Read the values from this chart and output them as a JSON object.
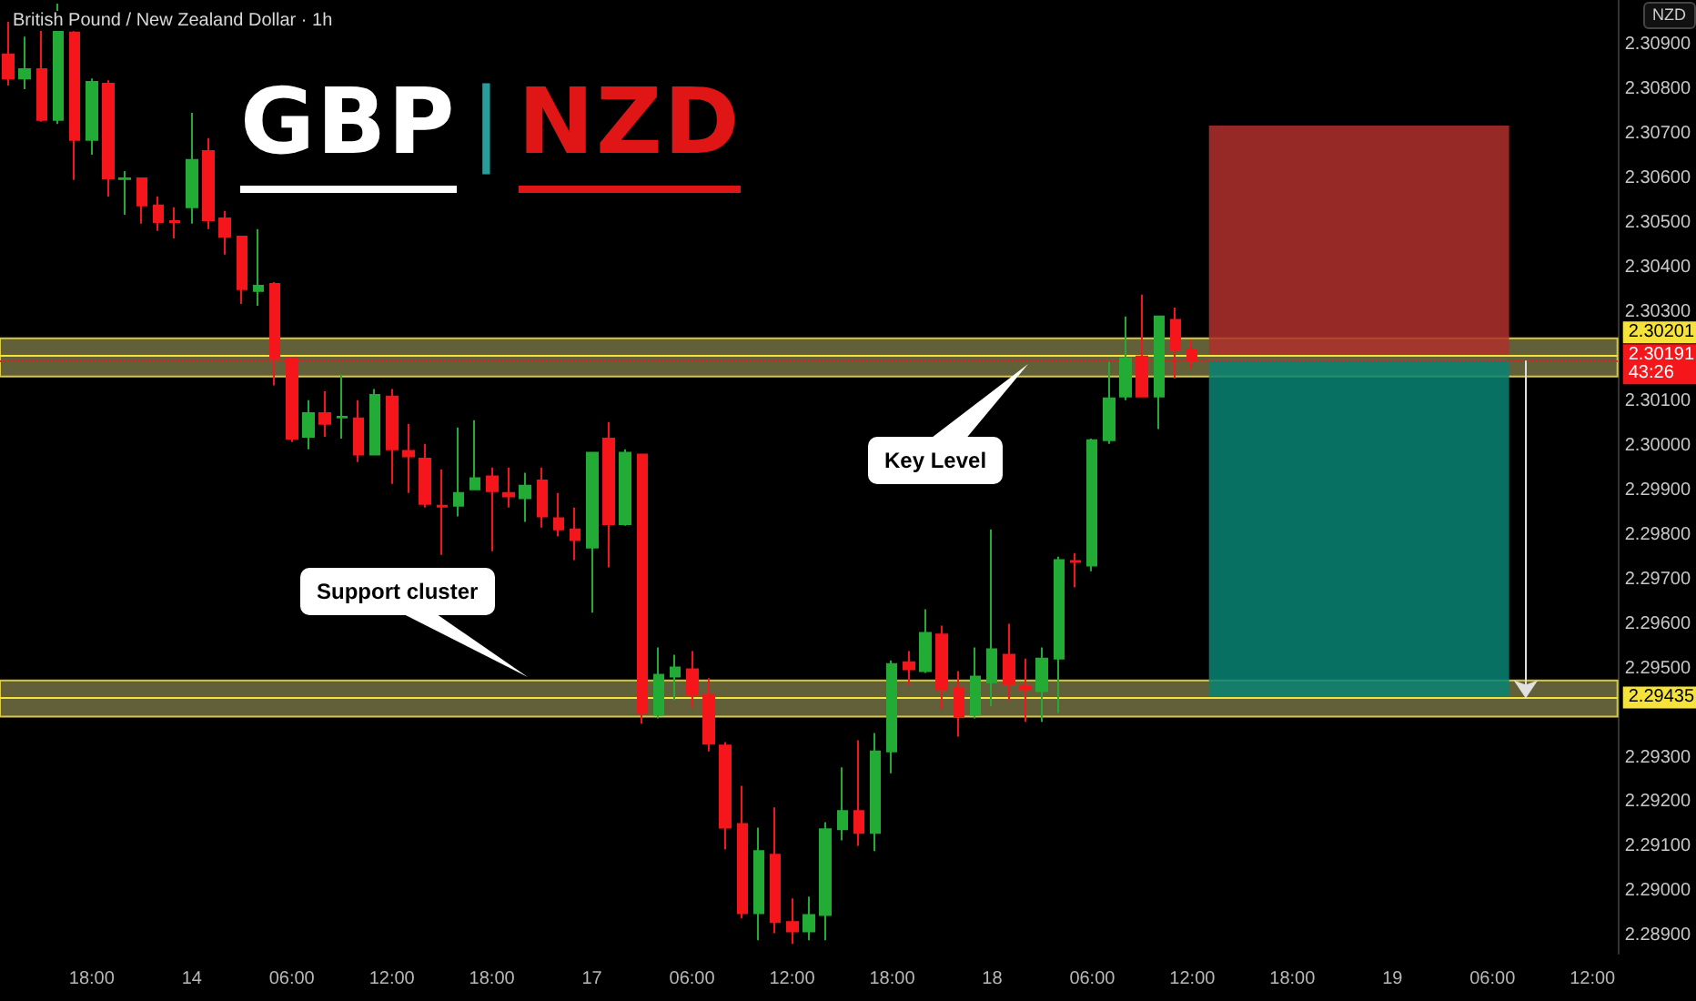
{
  "chart_data": {
    "type": "candlestick",
    "title": "GBP|NZD",
    "subtitle": "British Pound / New Zealand Dollar · 1h",
    "ylabel": "NZD",
    "categories": [
      null,
      null,
      null,
      null,
      null,
      "18:00",
      null,
      null,
      null,
      null,
      null,
      "14",
      null,
      null,
      null,
      null,
      null,
      "06:00",
      null,
      null,
      null,
      null,
      null,
      "12:00",
      null,
      null,
      null,
      null,
      null,
      "18:00",
      null,
      null,
      null,
      null,
      null,
      "17",
      null,
      null,
      null,
      null,
      null,
      "06:00",
      null,
      null,
      null,
      null,
      null,
      "12:00",
      null,
      null,
      null,
      null,
      null,
      "18:00",
      null,
      null,
      null,
      null,
      null,
      "18",
      null,
      null,
      null,
      null,
      null,
      "06:00",
      null,
      null,
      null,
      null,
      null,
      "12:00",
      null,
      null,
      null,
      null,
      null,
      "18:00",
      null,
      null,
      null,
      null,
      null,
      "19",
      null,
      null,
      null,
      null,
      null,
      "06:00",
      null,
      null,
      null,
      null,
      null,
      "12:00",
      null
    ],
    "ohlc": [
      [
        2.30878,
        2.30951,
        2.30808,
        2.30824
      ],
      [
        2.30824,
        2.30918,
        2.308,
        2.30845
      ],
      [
        2.30845,
        2.30931,
        2.30727,
        2.30731
      ],
      [
        2.30731,
        2.30992,
        2.30722,
        2.30931
      ],
      [
        2.30927,
        2.3093,
        2.30596,
        2.30686
      ],
      [
        2.30686,
        2.30824,
        2.30653,
        2.30816
      ],
      [
        2.30812,
        2.3082,
        2.30559,
        2.306
      ],
      [
        2.30598,
        2.30616,
        2.30518,
        2.306
      ],
      [
        2.306,
        2.30601,
        2.30498,
        2.30539
      ],
      [
        2.30539,
        2.30559,
        2.30482,
        2.30502
      ],
      [
        2.30504,
        2.30535,
        2.30465,
        2.30502
      ],
      [
        2.30535,
        2.30747,
        2.30498,
        2.30641
      ],
      [
        2.30661,
        2.3069,
        2.30486,
        2.30506
      ],
      [
        2.3051,
        2.30527,
        2.30429,
        2.30469
      ],
      [
        2.30469,
        2.3047,
        2.30318,
        2.30351
      ],
      [
        2.30347,
        2.30486,
        2.30314,
        2.30359
      ],
      [
        2.30363,
        2.30367,
        2.30135,
        2.30196
      ],
      [
        2.30196,
        2.30197,
        2.30008,
        2.30016
      ],
      [
        2.3002,
        2.30102,
        2.29992,
        2.30073
      ],
      [
        2.30073,
        2.30122,
        2.3002,
        2.30049
      ],
      [
        2.30063,
        2.30159,
        2.30016,
        2.30065
      ],
      [
        2.30061,
        2.30102,
        2.29963,
        2.2998
      ],
      [
        2.2998,
        2.30127,
        2.29978,
        2.30114
      ],
      [
        2.3011,
        2.30127,
        2.29914,
        2.29992
      ],
      [
        2.29988,
        2.30049,
        2.29894,
        2.29976
      ],
      [
        2.29971,
        2.30004,
        2.29861,
        2.29869
      ],
      [
        2.29865,
        2.29947,
        2.29755,
        2.29863
      ],
      [
        2.29865,
        2.30041,
        2.29841,
        2.29894
      ],
      [
        2.29902,
        2.30057,
        2.299,
        2.29927
      ],
      [
        2.29931,
        2.29951,
        2.29763,
        2.29898
      ],
      [
        2.29894,
        2.29951,
        2.29861,
        2.29886
      ],
      [
        2.29882,
        2.29939,
        2.29829,
        2.2991
      ],
      [
        2.29922,
        2.29951,
        2.29816,
        2.29841
      ],
      [
        2.29837,
        2.29894,
        2.29796,
        2.29812
      ],
      [
        2.29812,
        2.29861,
        2.29743,
        2.29788
      ],
      [
        2.29771,
        2.29986,
        2.29625,
        2.29984
      ],
      [
        2.30016,
        2.30053,
        2.29727,
        2.29824
      ],
      [
        2.29824,
        2.29992,
        2.2982,
        2.29984
      ],
      [
        2.2998,
        2.29982,
        2.29376,
        2.294
      ],
      [
        2.29396,
        2.29547,
        2.29388,
        2.29486
      ],
      [
        2.29482,
        2.29531,
        2.29429,
        2.29502
      ],
      [
        2.29498,
        2.29539,
        2.29412,
        2.29441
      ],
      [
        2.29441,
        2.29478,
        2.29314,
        2.29331
      ],
      [
        2.29327,
        2.29335,
        2.29094,
        2.29143
      ],
      [
        2.29151,
        2.29237,
        2.28939,
        2.28951
      ],
      [
        2.28951,
        2.29143,
        2.2889,
        2.2909
      ],
      [
        2.29082,
        2.29188,
        2.28906,
        2.28931
      ],
      [
        2.28931,
        2.28984,
        2.28882,
        2.2891
      ],
      [
        2.2891,
        2.28988,
        2.2889,
        2.28947
      ],
      [
        2.28947,
        2.29155,
        2.2889,
        2.29139
      ],
      [
        2.29139,
        2.29278,
        2.29114,
        2.2918
      ],
      [
        2.2918,
        2.29339,
        2.29102,
        2.29131
      ],
      [
        2.29131,
        2.29355,
        2.2909,
        2.29314
      ],
      [
        2.29314,
        2.29518,
        2.29265,
        2.2951
      ],
      [
        2.29514,
        2.29539,
        2.29461,
        2.29498
      ],
      [
        2.29494,
        2.29633,
        2.2949,
        2.2958
      ],
      [
        2.29576,
        2.29596,
        2.29408,
        2.29453
      ],
      [
        2.29457,
        2.29494,
        2.29347,
        2.29392
      ],
      [
        2.29396,
        2.29547,
        2.29388,
        2.29482
      ],
      [
        2.29469,
        2.29812,
        2.29416,
        2.29543
      ],
      [
        2.29531,
        2.296,
        2.29429,
        2.29465
      ],
      [
        2.29461,
        2.29522,
        2.2938,
        2.29453
      ],
      [
        2.29449,
        2.29547,
        2.2938,
        2.29522
      ],
      [
        2.29522,
        2.29751,
        2.294,
        2.29743
      ],
      [
        2.29741,
        2.29759,
        2.29682,
        2.29739
      ],
      [
        2.29731,
        2.30016,
        2.29718,
        2.30012
      ],
      [
        2.30012,
        2.30188,
        2.30004,
        2.30106
      ],
      [
        2.3011,
        2.3029,
        2.30102,
        2.30196
      ],
      [
        2.302,
        2.30339,
        2.30108,
        2.3011
      ],
      [
        2.3011,
        2.30292,
        2.30037,
        2.3029
      ],
      [
        2.30282,
        2.3031,
        2.30151,
        2.30216
      ],
      [
        2.30216,
        2.30237,
        2.30171,
        2.30191
      ],
      null,
      null,
      null,
      null,
      null,
      null,
      null,
      null,
      null,
      null,
      null,
      null,
      null,
      null,
      null,
      null,
      null,
      null,
      null,
      null,
      null,
      null,
      null,
      null,
      null
    ],
    "colors": [
      "#f5161b",
      "#22ab35",
      "#f5161b",
      "#22ab35",
      "#f5161b",
      "#22ab35",
      "#f5161b",
      "#22ab35",
      "#f5161b",
      "#f5161b",
      "#f5161b",
      "#22ab35",
      "#f5161b",
      "#f5161b",
      "#f5161b",
      "#22ab35",
      "#f5161b",
      "#f5161b",
      "#22ab35",
      "#f5161b",
      "#22ab35",
      "#f5161b",
      "#22ab35",
      "#f5161b",
      "#f5161b",
      "#f5161b",
      "#f5161b",
      "#22ab35",
      "#22ab35",
      "#f5161b",
      "#f5161b",
      "#22ab35",
      "#f5161b",
      "#f5161b",
      "#f5161b",
      "#22ab35",
      "#f5161b",
      "#22ab35",
      "#f5161b",
      "#22ab35",
      "#22ab35",
      "#f5161b",
      "#f5161b",
      "#f5161b",
      "#f5161b",
      "#22ab35",
      "#f5161b",
      "#f5161b",
      "#22ab35",
      "#22ab35",
      "#22ab35",
      "#f5161b",
      "#22ab35",
      "#22ab35",
      "#f5161b",
      "#22ab35",
      "#f5161b",
      "#f5161b",
      "#22ab35",
      "#22ab35",
      "#f5161b",
      "#f5161b",
      "#22ab35",
      "#22ab35",
      "#f5161b",
      "#22ab35",
      "#22ab35",
      "#22ab35",
      "#f5161b",
      "#22ab35",
      "#f5161b",
      "#f5161b",
      null,
      null,
      null,
      null,
      null,
      null,
      null,
      null,
      null,
      null,
      null,
      null,
      null,
      null,
      null,
      null,
      null,
      null,
      null,
      null,
      null,
      null,
      null,
      null,
      null
    ],
    "ylim": [
      2.2886,
      2.31
    ],
    "yticks": [
      {
        "value": 2.289,
        "label": "2.28900"
      },
      {
        "value": 2.29,
        "label": "2.29000"
      },
      {
        "value": 2.291,
        "label": "2.29100"
      },
      {
        "value": 2.292,
        "label": "2.29200"
      },
      {
        "value": 2.293,
        "label": "2.29300"
      },
      {
        "value": 2.295,
        "label": "2.29500"
      },
      {
        "value": 2.296,
        "label": "2.29600"
      },
      {
        "value": 2.297,
        "label": "2.29700"
      },
      {
        "value": 2.298,
        "label": "2.29800"
      },
      {
        "value": 2.299,
        "label": "2.29900"
      },
      {
        "value": 2.3,
        "label": "2.30000"
      },
      {
        "value": 2.301,
        "label": "2.30100"
      },
      {
        "value": 2.303,
        "label": "2.30300"
      },
      {
        "value": 2.304,
        "label": "2.30400"
      },
      {
        "value": 2.305,
        "label": "2.30500"
      },
      {
        "value": 2.306,
        "label": "2.30600"
      },
      {
        "value": 2.307,
        "label": "2.30700"
      },
      {
        "value": 2.308,
        "label": "2.30800"
      },
      {
        "value": 2.309,
        "label": "2.30900"
      }
    ],
    "grid": false,
    "bands": [
      {
        "axis": "y",
        "from": 2.30155,
        "to": 2.30241,
        "color": "#6b6a3f"
      },
      {
        "axis": "y",
        "from": 2.29392,
        "to": 2.29473,
        "color": "#6b6a3f"
      },
      {
        "axis": "y",
        "from": 2.302,
        "to": 2.30718,
        "color": "#b0302c"
      },
      {
        "axis": "y",
        "from": 2.29433,
        "to": 2.30191,
        "color": "#088474"
      }
    ],
    "ref_lines": [
      {
        "axis": "y",
        "value": 2.30201,
        "label": "2.30201",
        "color": "#f5e33b"
      },
      {
        "axis": "y",
        "value": 2.30191,
        "label": "2.30191\n43:26",
        "color": "#f5161b",
        "line_style": "dotted"
      },
      {
        "axis": "y",
        "value": 2.29435,
        "label": "2.29435",
        "color": "#f5e33b"
      }
    ],
    "annotations": [
      "Key Level",
      "Support cluster"
    ]
  }
}
